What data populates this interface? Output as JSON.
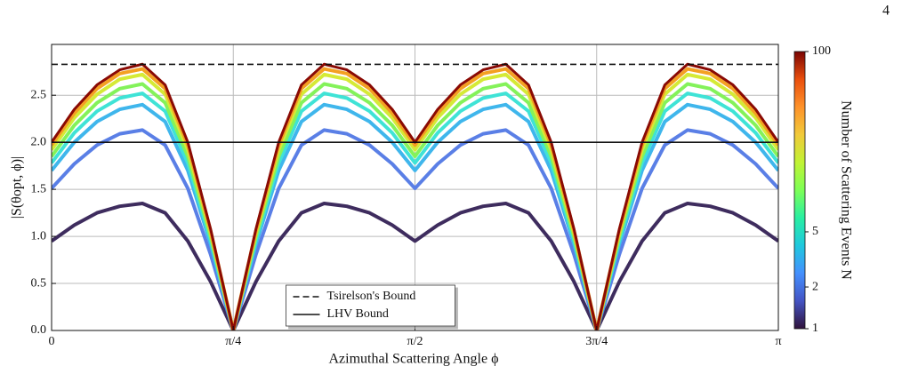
{
  "page_number": 4,
  "chart_data": {
    "type": "line",
    "xlabel": "Azimuthal Scattering Angle ϕ",
    "ylabel": "|S(θopt, ϕ)|",
    "xlim": [
      0,
      3.1416
    ],
    "ylim": [
      0,
      3.04
    ],
    "xticks": [
      0,
      {
        "value": 0.7854,
        "label": "π/4"
      },
      {
        "value": 1.5708,
        "label": "π/2"
      },
      {
        "value": 2.3562,
        "label": "3π/4"
      },
      {
        "value": 3.1416,
        "label": "π"
      }
    ],
    "yticks": [
      {
        "value": 0,
        "label": "0.0"
      },
      0.5,
      {
        "value": 1,
        "label": "1.0"
      },
      1.5,
      {
        "value": 2,
        "label": "2.0"
      },
      2.5
    ],
    "grid": true,
    "legend": "lower center",
    "x": [
      0,
      0.0982,
      0.1963,
      0.2945,
      0.3927,
      0.4909,
      0.589,
      0.6872,
      0.7854,
      0.8836,
      0.9817,
      1.0799,
      1.1781,
      1.2763,
      1.3744,
      1.4726,
      1.5708,
      1.669,
      1.7671,
      1.8653,
      1.9635,
      2.0617,
      2.1598,
      2.258,
      2.3562,
      2.4544,
      2.5525,
      2.6507,
      2.7489,
      2.8471,
      2.9452,
      3.0434,
      3.1416
    ],
    "series": [
      {
        "color": "#3e2c5e",
        "values": [
          0.95,
          1.12,
          1.25,
          1.32,
          1.35,
          1.25,
          0.95,
          0.52,
          0,
          0.52,
          0.95,
          1.25,
          1.35,
          1.32,
          1.25,
          1.12,
          0.95,
          1.12,
          1.25,
          1.32,
          1.35,
          1.25,
          0.95,
          0.52,
          0,
          0.52,
          0.95,
          1.25,
          1.35,
          1.32,
          1.25,
          1.12,
          0.95
        ]
      },
      {
        "color": "#5a7fe6",
        "values": [
          1.51,
          1.77,
          1.97,
          2.09,
          2.13,
          1.97,
          1.51,
          0.81,
          0,
          0.81,
          1.51,
          1.97,
          2.13,
          2.09,
          1.97,
          1.77,
          1.51,
          1.77,
          1.97,
          2.09,
          2.13,
          1.97,
          1.51,
          0.81,
          0,
          0.81,
          1.51,
          1.97,
          2.13,
          2.09,
          1.97,
          1.77,
          1.51
        ]
      },
      {
        "color": "#3fb6ec",
        "values": [
          1.7,
          2,
          2.22,
          2.35,
          2.4,
          2.22,
          1.7,
          0.92,
          0,
          0.92,
          1.7,
          2.22,
          2.4,
          2.35,
          2.22,
          2,
          1.7,
          2,
          2.22,
          2.35,
          2.4,
          2.22,
          1.7,
          0.92,
          0,
          0.92,
          1.7,
          2.22,
          2.4,
          2.35,
          2.22,
          2,
          1.7
        ]
      },
      {
        "color": "#3fe3d6",
        "values": [
          1.78,
          2.1,
          2.33,
          2.47,
          2.52,
          2.33,
          1.78,
          0.96,
          0,
          0.96,
          1.78,
          2.33,
          2.52,
          2.47,
          2.33,
          2.1,
          1.78,
          2.1,
          2.33,
          2.47,
          2.52,
          2.33,
          1.78,
          0.96,
          0,
          0.96,
          1.78,
          2.33,
          2.52,
          2.47,
          2.33,
          2.1,
          1.78
        ]
      },
      {
        "color": "#84f25a",
        "values": [
          1.85,
          2.18,
          2.42,
          2.57,
          2.62,
          2.42,
          1.85,
          1,
          0,
          1,
          1.85,
          2.42,
          2.62,
          2.57,
          2.42,
          2.18,
          1.85,
          2.18,
          2.42,
          2.57,
          2.62,
          2.42,
          1.85,
          1,
          0,
          1,
          1.85,
          2.42,
          2.62,
          2.57,
          2.42,
          2.18,
          1.85
        ]
      },
      {
        "color": "#d5ea36",
        "values": [
          1.92,
          2.26,
          2.51,
          2.67,
          2.72,
          2.51,
          1.92,
          1.04,
          0,
          1.04,
          1.92,
          2.51,
          2.72,
          2.67,
          2.51,
          2.26,
          1.92,
          2.26,
          2.51,
          2.67,
          2.72,
          2.51,
          1.92,
          1.04,
          0,
          1.04,
          1.92,
          2.51,
          2.72,
          2.67,
          2.51,
          2.26,
          1.92
        ]
      },
      {
        "color": "#f4a023",
        "values": [
          1.97,
          2.31,
          2.57,
          2.73,
          2.78,
          2.57,
          1.97,
          1.06,
          0,
          1.06,
          1.97,
          2.57,
          2.78,
          2.73,
          2.57,
          2.31,
          1.97,
          2.31,
          2.57,
          2.73,
          2.78,
          2.57,
          1.97,
          1.06,
          0,
          1.06,
          1.97,
          2.57,
          2.78,
          2.73,
          2.57,
          2.31,
          1.97
        ]
      },
      {
        "color": "#8a0a04",
        "values": [
          2,
          2.35,
          2.61,
          2.77,
          2.83,
          2.61,
          2,
          1.08,
          0,
          1.08,
          2,
          2.61,
          2.83,
          2.77,
          2.61,
          2.35,
          2,
          2.35,
          2.61,
          2.77,
          2.83,
          2.61,
          2,
          1.08,
          0,
          1.08,
          2,
          2.61,
          2.83,
          2.77,
          2.61,
          2.35,
          2
        ]
      }
    ],
    "hlines": [
      {
        "name": "Tsirelson's Bound",
        "value": 2.828,
        "dashed": true,
        "color": "#111111"
      },
      {
        "name": "LHV Bound",
        "value": 2,
        "dashed": false,
        "color": "#111111"
      }
    ],
    "colorbar": {
      "label": "Number of Scattering Events N",
      "log": true,
      "lim": [
        1,
        100
      ],
      "ticks": [
        1,
        2,
        5,
        100
      ]
    }
  }
}
